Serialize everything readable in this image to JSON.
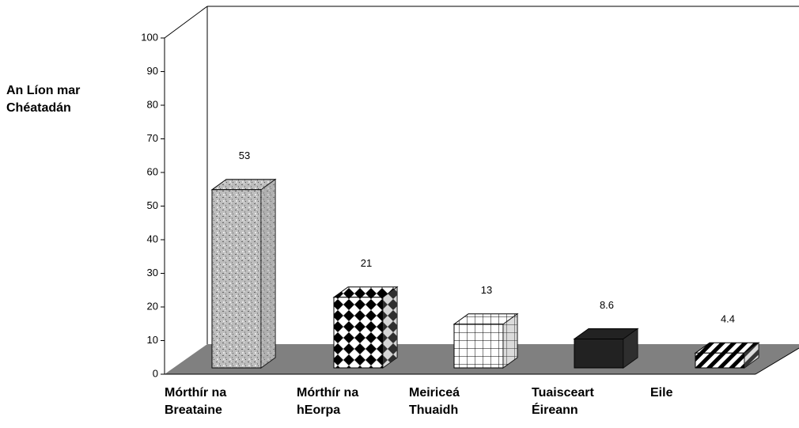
{
  "chart_data": {
    "type": "bar3d",
    "y_label": "An Líon mar Chéatadán",
    "categories": [
      "Mórthír na Breataine",
      "Mórthír na hEorpa",
      "Meiriceá Thuaidh",
      "Tuaisceart Éireann",
      "Eile"
    ],
    "values": [
      53,
      21,
      13,
      8.6,
      4.4
    ],
    "ylim": [
      0,
      100
    ],
    "yticks": [
      0,
      10,
      20,
      30,
      40,
      50,
      60,
      70,
      80,
      90,
      100
    ]
  }
}
